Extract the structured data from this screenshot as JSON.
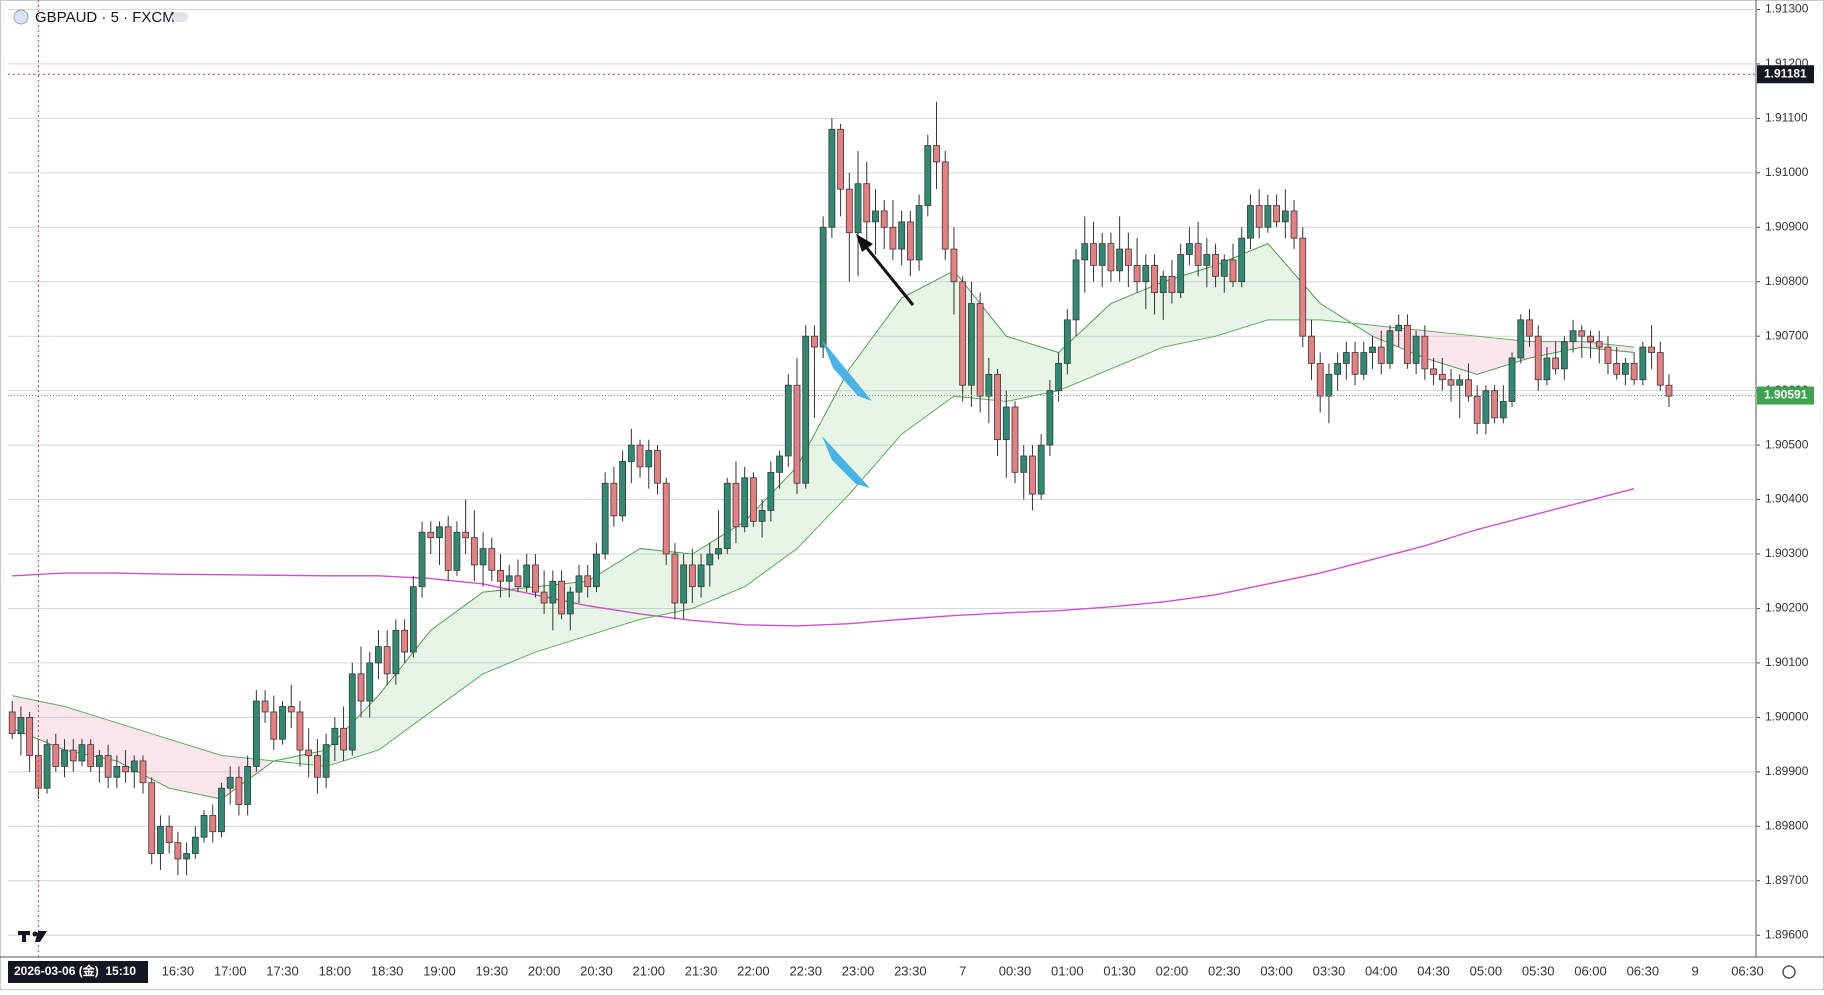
{
  "chart_data": {
    "type": "candlestick",
    "title": "GBPAUD · 5 · FXCM",
    "ylim": [
      1.8956,
      1.9131
    ],
    "yticks": [
      {
        "value": 1.896,
        "label": "1.89600"
      },
      {
        "value": 1.897,
        "label": "1.89700"
      },
      {
        "value": 1.898,
        "label": "1.89800"
      },
      {
        "value": 1.899,
        "label": "1.89900"
      },
      {
        "value": 1.9,
        "label": "1.90000"
      },
      {
        "value": 1.901,
        "label": "1.90100"
      },
      {
        "value": 1.902,
        "label": "1.90200"
      },
      {
        "value": 1.903,
        "label": "1.90300"
      },
      {
        "value": 1.904,
        "label": "1.90400"
      },
      {
        "value": 1.905,
        "label": "1.90500"
      },
      {
        "value": 1.906,
        "label": "1.90600"
      },
      {
        "value": 1.907,
        "label": "1.90700"
      },
      {
        "value": 1.908,
        "label": "1.90800"
      },
      {
        "value": 1.909,
        "label": "1.90900"
      },
      {
        "value": 1.91,
        "label": "1.91000"
      },
      {
        "value": 1.911,
        "label": "1.91100"
      },
      {
        "value": 1.912,
        "label": "1.91200"
      },
      {
        "value": 1.913,
        "label": "1.91300"
      }
    ],
    "xticks": [
      "16:30",
      "17:00",
      "17:30",
      "18:00",
      "18:30",
      "19:00",
      "19:30",
      "20:00",
      "20:30",
      "21:00",
      "21:30",
      "22:00",
      "22:30",
      "23:00",
      "23:30",
      "7",
      "00:30",
      "01:00",
      "01:30",
      "02:00",
      "02:30",
      "03:00",
      "03:30",
      "04:00",
      "04:30",
      "05:00",
      "05:30",
      "06:00",
      "06:30",
      "9",
      "06:30"
    ],
    "grid": true,
    "up_color": "#2e8b72",
    "down_color": "#e57f82",
    "crosshair_price": 1.91181,
    "last_price": 1.90591,
    "crosshair_time": "2026-03-06 (金)  15:10",
    "ohlc": [
      [
        1.9001,
        1.9003,
        1.8996,
        1.8997
      ],
      [
        1.8997,
        1.9002,
        1.8993,
        1.9
      ],
      [
        1.9,
        1.9001,
        1.899,
        1.8993
      ],
      [
        1.8993,
        1.8996,
        1.8985,
        1.8987
      ],
      [
        1.8987,
        1.8996,
        1.8986,
        1.8995
      ],
      [
        1.8995,
        1.8997,
        1.899,
        1.8991
      ],
      [
        1.8991,
        1.8996,
        1.8989,
        1.8994
      ],
      [
        1.8994,
        1.8996,
        1.899,
        1.8992
      ],
      [
        1.8992,
        1.8996,
        1.8991,
        1.8995
      ],
      [
        1.8995,
        1.8996,
        1.899,
        1.8991
      ],
      [
        1.8991,
        1.8994,
        1.8988,
        1.8993
      ],
      [
        1.8993,
        1.8995,
        1.8987,
        1.8989
      ],
      [
        1.8989,
        1.8993,
        1.8987,
        1.8991
      ],
      [
        1.8991,
        1.8994,
        1.8988,
        1.899
      ],
      [
        1.899,
        1.8993,
        1.8987,
        1.8992
      ],
      [
        1.8992,
        1.8993,
        1.8986,
        1.8988
      ],
      [
        1.8988,
        1.8989,
        1.8973,
        1.8975
      ],
      [
        1.8975,
        1.8982,
        1.8972,
        1.898
      ],
      [
        1.898,
        1.8982,
        1.8975,
        1.8977
      ],
      [
        1.8977,
        1.8979,
        1.8971,
        1.8974
      ],
      [
        1.8974,
        1.8977,
        1.8971,
        1.8975
      ],
      [
        1.8975,
        1.898,
        1.8974,
        1.8978
      ],
      [
        1.8978,
        1.8983,
        1.8977,
        1.8982
      ],
      [
        1.8982,
        1.8984,
        1.8977,
        1.8979
      ],
      [
        1.8979,
        1.8988,
        1.8978,
        1.8987
      ],
      [
        1.8987,
        1.8991,
        1.8984,
        1.8989
      ],
      [
        1.8989,
        1.8991,
        1.8982,
        1.8984
      ],
      [
        1.8984,
        1.8993,
        1.8982,
        1.8991
      ],
      [
        1.8991,
        1.9005,
        1.899,
        1.9003
      ],
      [
        1.9003,
        1.9005,
        1.8999,
        1.9001
      ],
      [
        1.9001,
        1.9004,
        1.8994,
        1.8996
      ],
      [
        1.8996,
        1.9003,
        1.8995,
        1.9002
      ],
      [
        1.9002,
        1.9006,
        1.8998,
        1.9001
      ],
      [
        1.9001,
        1.9003,
        1.8991,
        1.8994
      ],
      [
        1.8994,
        1.8998,
        1.8989,
        1.8993
      ],
      [
        1.8993,
        1.8996,
        1.8986,
        1.8989
      ],
      [
        1.8989,
        1.8997,
        1.8987,
        1.8995
      ],
      [
        1.8995,
        1.9,
        1.8992,
        1.8998
      ],
      [
        1.8998,
        1.9002,
        1.8992,
        1.8994
      ],
      [
        1.8994,
        1.901,
        1.8993,
        1.9008
      ],
      [
        1.9008,
        1.9013,
        1.9,
        1.9003
      ],
      [
        1.9003,
        1.9012,
        1.9,
        1.901
      ],
      [
        1.901,
        1.9016,
        1.9007,
        1.9013
      ],
      [
        1.9013,
        1.9016,
        1.9006,
        1.9008
      ],
      [
        1.9008,
        1.9018,
        1.9006,
        1.9016
      ],
      [
        1.9016,
        1.9018,
        1.901,
        1.9012
      ],
      [
        1.9012,
        1.9026,
        1.9011,
        1.9024
      ],
      [
        1.9024,
        1.9036,
        1.9022,
        1.9034
      ],
      [
        1.9034,
        1.9036,
        1.903,
        1.9033
      ],
      [
        1.9033,
        1.9036,
        1.9028,
        1.9035
      ],
      [
        1.9035,
        1.9037,
        1.9025,
        1.9027
      ],
      [
        1.9027,
        1.9036,
        1.9026,
        1.9034
      ],
      [
        1.9034,
        1.904,
        1.903,
        1.9033
      ],
      [
        1.9033,
        1.9038,
        1.9025,
        1.9028
      ],
      [
        1.9028,
        1.9034,
        1.9024,
        1.9031
      ],
      [
        1.9031,
        1.9033,
        1.9025,
        1.9027
      ],
      [
        1.9027,
        1.903,
        1.9022,
        1.9025
      ],
      [
        1.9025,
        1.9028,
        1.9022,
        1.9026
      ],
      [
        1.9026,
        1.9029,
        1.9023,
        1.9024
      ],
      [
        1.9024,
        1.903,
        1.9023,
        1.9028
      ],
      [
        1.9028,
        1.903,
        1.9022,
        1.9023
      ],
      [
        1.9023,
        1.9027,
        1.9019,
        1.9021
      ],
      [
        1.9021,
        1.9027,
        1.9016,
        1.9025
      ],
      [
        1.9025,
        1.9027,
        1.9018,
        1.9019
      ],
      [
        1.9019,
        1.9024,
        1.9016,
        1.9023
      ],
      [
        1.9023,
        1.9028,
        1.9021,
        1.9026
      ],
      [
        1.9026,
        1.9028,
        1.9022,
        1.9024
      ],
      [
        1.9024,
        1.9032,
        1.9023,
        1.903
      ],
      [
        1.903,
        1.9045,
        1.9029,
        1.9043
      ],
      [
        1.9043,
        1.9046,
        1.9035,
        1.9037
      ],
      [
        1.9037,
        1.9049,
        1.9036,
        1.9047
      ],
      [
        1.9047,
        1.9053,
        1.9043,
        1.905
      ],
      [
        1.905,
        1.9051,
        1.9044,
        1.9046
      ],
      [
        1.9046,
        1.9051,
        1.9042,
        1.9049
      ],
      [
        1.9049,
        1.905,
        1.9041,
        1.9043
      ],
      [
        1.9043,
        1.9044,
        1.9028,
        1.903
      ],
      [
        1.903,
        1.9032,
        1.9018,
        1.9021
      ],
      [
        1.9021,
        1.903,
        1.9018,
        1.9028
      ],
      [
        1.9028,
        1.9031,
        1.9021,
        1.9024
      ],
      [
        1.9024,
        1.903,
        1.9022,
        1.9028
      ],
      [
        1.9028,
        1.9032,
        1.9024,
        1.903
      ],
      [
        1.903,
        1.9038,
        1.9029,
        1.9031
      ],
      [
        1.9031,
        1.9044,
        1.903,
        1.9043
      ],
      [
        1.9043,
        1.9047,
        1.9032,
        1.9035
      ],
      [
        1.9035,
        1.9046,
        1.9034,
        1.9044
      ],
      [
        1.9044,
        1.9045,
        1.9035,
        1.9036
      ],
      [
        1.9036,
        1.904,
        1.9033,
        1.9038
      ],
      [
        1.9038,
        1.9047,
        1.9036,
        1.9045
      ],
      [
        1.9045,
        1.9049,
        1.9042,
        1.9048
      ],
      [
        1.9048,
        1.9063,
        1.9046,
        1.9061
      ],
      [
        1.9061,
        1.9066,
        1.9041,
        1.9043
      ],
      [
        1.9043,
        1.9072,
        1.9042,
        1.907
      ],
      [
        1.907,
        1.9072,
        1.9055,
        1.9068
      ],
      [
        1.9068,
        1.9092,
        1.9066,
        1.909
      ],
      [
        1.909,
        1.911,
        1.9088,
        1.9108
      ],
      [
        1.9108,
        1.9109,
        1.9092,
        1.9097
      ],
      [
        1.9097,
        1.91,
        1.908,
        1.9089
      ],
      [
        1.9089,
        1.9104,
        1.9081,
        1.9098
      ],
      [
        1.9098,
        1.9102,
        1.9086,
        1.9091
      ],
      [
        1.9091,
        1.9097,
        1.9085,
        1.9093
      ],
      [
        1.9093,
        1.9095,
        1.9086,
        1.909
      ],
      [
        1.909,
        1.9095,
        1.9084,
        1.9086
      ],
      [
        1.9086,
        1.9093,
        1.9083,
        1.9091
      ],
      [
        1.9091,
        1.9093,
        1.9081,
        1.9084
      ],
      [
        1.9084,
        1.9096,
        1.9082,
        1.9094
      ],
      [
        1.9094,
        1.9107,
        1.9092,
        1.9105
      ],
      [
        1.9105,
        1.9113,
        1.9097,
        1.9102
      ],
      [
        1.9102,
        1.9104,
        1.9084,
        1.9086
      ],
      [
        1.9086,
        1.909,
        1.9074,
        1.908
      ],
      [
        1.908,
        1.9081,
        1.9058,
        1.9061
      ],
      [
        1.9061,
        1.908,
        1.9057,
        1.9076
      ],
      [
        1.9076,
        1.9078,
        1.9056,
        1.9059
      ],
      [
        1.9059,
        1.9066,
        1.9054,
        1.9063
      ],
      [
        1.9063,
        1.9064,
        1.9048,
        1.9051
      ],
      [
        1.9051,
        1.906,
        1.9044,
        1.9057
      ],
      [
        1.9057,
        1.9058,
        1.9043,
        1.9045
      ],
      [
        1.9045,
        1.905,
        1.904,
        1.9048
      ],
      [
        1.9048,
        1.905,
        1.9038,
        1.9041
      ],
      [
        1.9041,
        1.9052,
        1.904,
        1.905
      ],
      [
        1.905,
        1.9062,
        1.9048,
        1.906
      ],
      [
        1.906,
        1.9067,
        1.9058,
        1.9065
      ],
      [
        1.9065,
        1.9075,
        1.9063,
        1.9073
      ],
      [
        1.9073,
        1.9086,
        1.907,
        1.9084
      ],
      [
        1.9084,
        1.9092,
        1.9078,
        1.9087
      ],
      [
        1.9087,
        1.9091,
        1.908,
        1.9083
      ],
      [
        1.9083,
        1.9089,
        1.9079,
        1.9087
      ],
      [
        1.9087,
        1.9089,
        1.908,
        1.9082
      ],
      [
        1.9082,
        1.9092,
        1.908,
        1.9086
      ],
      [
        1.9086,
        1.9089,
        1.9079,
        1.9083
      ],
      [
        1.9083,
        1.9088,
        1.9078,
        1.908
      ],
      [
        1.908,
        1.9085,
        1.9075,
        1.9083
      ],
      [
        1.9083,
        1.9085,
        1.9074,
        1.9078
      ],
      [
        1.9078,
        1.9082,
        1.9073,
        1.9081
      ],
      [
        1.9081,
        1.9084,
        1.9076,
        1.9078
      ],
      [
        1.9078,
        1.9087,
        1.9077,
        1.9085
      ],
      [
        1.9085,
        1.909,
        1.9083,
        1.9087
      ],
      [
        1.9087,
        1.9091,
        1.9081,
        1.9083
      ],
      [
        1.9083,
        1.9088,
        1.9079,
        1.9085
      ],
      [
        1.9085,
        1.9087,
        1.9079,
        1.9081
      ],
      [
        1.9081,
        1.9085,
        1.9078,
        1.9084
      ],
      [
        1.9084,
        1.9087,
        1.9079,
        1.908
      ],
      [
        1.908,
        1.909,
        1.9079,
        1.9088
      ],
      [
        1.9088,
        1.9096,
        1.9086,
        1.9094
      ],
      [
        1.9094,
        1.9097,
        1.9088,
        1.909
      ],
      [
        1.909,
        1.9096,
        1.9089,
        1.9094
      ],
      [
        1.9094,
        1.9096,
        1.909,
        1.9091
      ],
      [
        1.9091,
        1.9097,
        1.9088,
        1.9093
      ],
      [
        1.9093,
        1.9095,
        1.9086,
        1.9088
      ],
      [
        1.9088,
        1.909,
        1.9068,
        1.907
      ],
      [
        1.907,
        1.9073,
        1.9062,
        1.9065
      ],
      [
        1.9065,
        1.9067,
        1.9056,
        1.9059
      ],
      [
        1.9059,
        1.9065,
        1.9054,
        1.9063
      ],
      [
        1.9063,
        1.9067,
        1.906,
        1.9065
      ],
      [
        1.9065,
        1.9069,
        1.9062,
        1.9067
      ],
      [
        1.9067,
        1.9069,
        1.9061,
        1.9063
      ],
      [
        1.9063,
        1.9069,
        1.9062,
        1.9067
      ],
      [
        1.9067,
        1.907,
        1.9064,
        1.9068
      ],
      [
        1.9068,
        1.9071,
        1.9063,
        1.9065
      ],
      [
        1.9065,
        1.9072,
        1.9064,
        1.9071
      ],
      [
        1.9071,
        1.9074,
        1.9068,
        1.9072
      ],
      [
        1.9072,
        1.9074,
        1.9064,
        1.9065
      ],
      [
        1.9065,
        1.9071,
        1.9063,
        1.907
      ],
      [
        1.907,
        1.9072,
        1.9062,
        1.9064
      ],
      [
        1.9064,
        1.9066,
        1.9061,
        1.9063
      ],
      [
        1.9063,
        1.9066,
        1.906,
        1.9062
      ],
      [
        1.9062,
        1.9064,
        1.9058,
        1.9061
      ],
      [
        1.9061,
        1.9063,
        1.9055,
        1.9062
      ],
      [
        1.9062,
        1.9065,
        1.9058,
        1.9059
      ],
      [
        1.9059,
        1.9061,
        1.9052,
        1.9054
      ],
      [
        1.9054,
        1.9061,
        1.9052,
        1.906
      ],
      [
        1.906,
        1.9061,
        1.9054,
        1.9055
      ],
      [
        1.9055,
        1.9061,
        1.9054,
        1.9058
      ],
      [
        1.9058,
        1.9067,
        1.9057,
        1.9066
      ],
      [
        1.9066,
        1.9074,
        1.9065,
        1.9073
      ],
      [
        1.9073,
        1.9075,
        1.9068,
        1.907
      ],
      [
        1.907,
        1.9072,
        1.906,
        1.9062
      ],
      [
        1.9062,
        1.9068,
        1.9061,
        1.9066
      ],
      [
        1.9066,
        1.9069,
        1.9063,
        1.9064
      ],
      [
        1.9064,
        1.907,
        1.9062,
        1.9069
      ],
      [
        1.9069,
        1.9073,
        1.9067,
        1.9071
      ],
      [
        1.9071,
        1.9072,
        1.9066,
        1.907
      ],
      [
        1.907,
        1.9071,
        1.9066,
        1.9069
      ],
      [
        1.9069,
        1.9071,
        1.9065,
        1.9068
      ],
      [
        1.9068,
        1.907,
        1.9063,
        1.9065
      ],
      [
        1.9065,
        1.9068,
        1.9062,
        1.9063
      ],
      [
        1.9063,
        1.9066,
        1.9061,
        1.9065
      ],
      [
        1.9065,
        1.9067,
        1.9061,
        1.9062
      ],
      [
        1.9062,
        1.9069,
        1.9061,
        1.9068
      ],
      [
        1.9068,
        1.9072,
        1.9064,
        1.9067
      ],
      [
        1.9067,
        1.9069,
        1.906,
        1.9061
      ],
      [
        1.9061,
        1.9063,
        1.9057,
        1.9059
      ]
    ],
    "overlays": [
      {
        "color": "#d04fd0",
        "values": [
          1.9026,
          1.90265,
          1.90265,
          1.90263,
          1.90262,
          1.90261,
          1.9026,
          1.9026,
          1.90255,
          1.90245,
          1.90225,
          1.90205,
          1.9019,
          1.90178,
          1.9017,
          1.90168,
          1.90172,
          1.9018,
          1.90187,
          1.90192,
          1.90196,
          1.90203,
          1.90212,
          1.90225,
          1.90245,
          1.90265,
          1.9029,
          1.90315,
          1.90345,
          1.9037,
          1.90395,
          1.9042
        ]
      },
      {
        "color": "#4f9f4f",
        "values": [
          1.8998,
          1.8994,
          1.8992,
          1.8987,
          1.8985,
          1.8992,
          1.8994,
          1.9004,
          1.9016,
          1.9023,
          1.9024,
          1.9025,
          1.9031,
          1.903,
          1.9036,
          1.9046,
          1.9064,
          1.9077,
          1.9082,
          1.907,
          1.9067,
          1.9076,
          1.908,
          1.9083,
          1.9087,
          1.9076,
          1.907,
          1.9066,
          1.9063,
          1.9066,
          1.9068,
          1.9067
        ]
      },
      {
        "color": "#5fae5f",
        "values": [
          1.9004,
          1.9002,
          1.8999,
          1.8996,
          1.8993,
          1.8992,
          1.8991,
          1.8994,
          1.9001,
          1.9008,
          1.9012,
          1.9015,
          1.9018,
          1.902,
          1.9024,
          1.9031,
          1.9041,
          1.9052,
          1.9059,
          1.9058,
          1.906,
          1.9064,
          1.9068,
          1.907,
          1.9073,
          1.9073,
          1.9072,
          1.9071,
          1.907,
          1.9069,
          1.9069,
          1.9068
        ]
      }
    ],
    "band_colors": {
      "up": "rgba(120,200,120,0.18)",
      "down": "rgba(240,150,180,0.25)"
    }
  }
}
